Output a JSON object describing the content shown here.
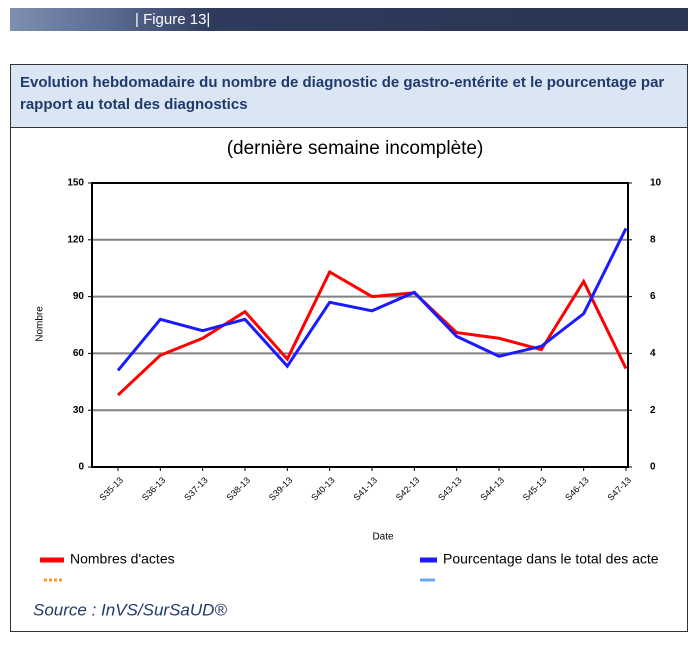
{
  "header": "| Figure 13|",
  "chart_data": {
    "type": "line",
    "title": "Evolution hebdomadaire du nombre de diagnostic de gastro-entérite et le pourcentage par rapport au total des diagnostics",
    "subtitle": "(dernière semaine incomplète)",
    "y_label": "Nombre",
    "x_label": "Date",
    "categories": [
      "S35-13",
      "S36-13",
      "S37-13",
      "S38-13",
      "S39-13",
      "S40-13",
      "S41-13",
      "S42-13",
      "S43-13",
      "S44-13",
      "S45-13",
      "S46-13",
      "S47-13"
    ],
    "series": [
      {
        "name": "Nombres d'actes",
        "color": "#ff0000",
        "values": [
          38,
          59,
          68,
          82,
          57,
          103,
          90,
          92,
          71,
          68,
          62,
          98,
          52
        ]
      },
      {
        "name": "Pourcentage dans le total des acte",
        "color": "#1a1aff",
        "axis": "y2",
        "values": [
          3.4,
          5.2,
          4.8,
          5.2,
          3.55,
          5.8,
          5.5,
          6.15,
          4.6,
          3.9,
          4.25,
          5.4,
          8.4
        ]
      }
    ],
    "ylim": [
      0,
      150
    ],
    "yticks": [
      0,
      30,
      60,
      90,
      120,
      150
    ],
    "y2lim": [
      0,
      10
    ],
    "y2ticks": [
      0,
      2,
      4,
      6,
      8,
      10
    ],
    "grid": true,
    "source": "Source : InVS/SurSaUD®"
  }
}
